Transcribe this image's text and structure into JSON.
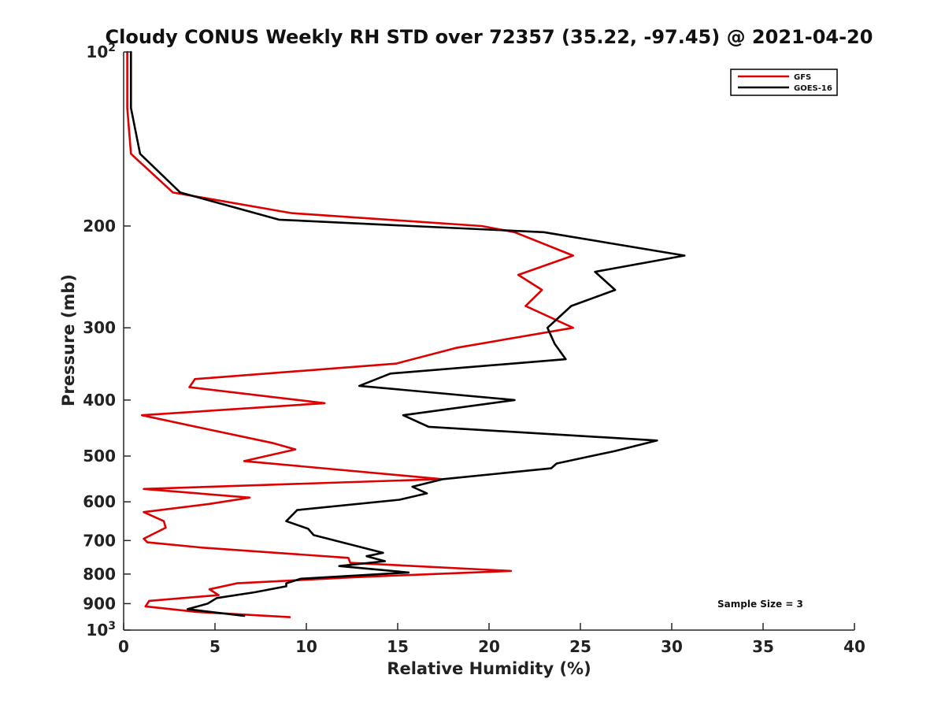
{
  "chart_data": {
    "type": "line",
    "title": "Cloudy CONUS Weekly RH STD over 72357 (35.22, -97.45) @ 2021-04-20",
    "xlabel": "Relative Humidity (%)",
    "ylabel": "Pressure (mb)",
    "xlim": [
      0,
      40
    ],
    "ylim": [
      100,
      1000
    ],
    "y_scale": "log",
    "y_reversed": true,
    "x_ticks": [
      0,
      5,
      10,
      15,
      20,
      25,
      30,
      35,
      40
    ],
    "y_ticks": [
      {
        "value": 100,
        "base": "10",
        "exp": "2"
      },
      {
        "value": 200,
        "label": "200"
      },
      {
        "value": 300,
        "label": "300"
      },
      {
        "value": 400,
        "label": "400"
      },
      {
        "value": 500,
        "label": "500"
      },
      {
        "value": 600,
        "label": "600"
      },
      {
        "value": 700,
        "label": "700"
      },
      {
        "value": 800,
        "label": "800"
      },
      {
        "value": 900,
        "label": "900"
      },
      {
        "value": 1000,
        "base": "10",
        "exp": "3"
      }
    ],
    "grid": false,
    "legend_position": "top-right",
    "annotation": "Sample Size = 3",
    "series": [
      {
        "name": "GFS",
        "color": "#dd0000",
        "points": [
          [
            0.2,
            100
          ],
          [
            0.2,
            125
          ],
          [
            0.4,
            150
          ],
          [
            2.7,
            175
          ],
          [
            9.2,
            190
          ],
          [
            19.6,
            200
          ],
          [
            21.4,
            205
          ],
          [
            24.6,
            225
          ],
          [
            21.6,
            243
          ],
          [
            22.9,
            258
          ],
          [
            22.0,
            275
          ],
          [
            24.6,
            300
          ],
          [
            18.2,
            325
          ],
          [
            14.9,
            346
          ],
          [
            3.9,
            368
          ],
          [
            3.6,
            380
          ],
          [
            11.0,
            405
          ],
          [
            1.0,
            425
          ],
          [
            4.7,
            450
          ],
          [
            8.2,
            475
          ],
          [
            9.4,
            487
          ],
          [
            6.6,
            510
          ],
          [
            17.4,
            548
          ],
          [
            1.1,
            570
          ],
          [
            6.9,
            590
          ],
          [
            4.7,
            605
          ],
          [
            1.1,
            625
          ],
          [
            2.2,
            648
          ],
          [
            2.3,
            665
          ],
          [
            1.1,
            695
          ],
          [
            1.3,
            705
          ],
          [
            4.3,
            720
          ],
          [
            12.3,
            750
          ],
          [
            12.4,
            765
          ],
          [
            21.2,
            790
          ],
          [
            12.7,
            810
          ],
          [
            6.2,
            830
          ],
          [
            4.7,
            850
          ],
          [
            5.2,
            870
          ],
          [
            1.4,
            890
          ],
          [
            1.2,
            910
          ],
          [
            4.0,
            930
          ],
          [
            9.1,
            950
          ]
        ]
      },
      {
        "name": "GOES-16",
        "color": "#000000",
        "points": [
          [
            0.4,
            100
          ],
          [
            0.4,
            125
          ],
          [
            0.9,
            150
          ],
          [
            3.1,
            175
          ],
          [
            8.5,
            195
          ],
          [
            15.8,
            200
          ],
          [
            23.0,
            205
          ],
          [
            30.7,
            225
          ],
          [
            25.8,
            240
          ],
          [
            26.9,
            258
          ],
          [
            24.5,
            275
          ],
          [
            23.2,
            300
          ],
          [
            23.6,
            320
          ],
          [
            24.2,
            340
          ],
          [
            14.6,
            360
          ],
          [
            12.9,
            378
          ],
          [
            21.4,
            400
          ],
          [
            15.3,
            425
          ],
          [
            16.7,
            445
          ],
          [
            29.2,
            470
          ],
          [
            26.9,
            490
          ],
          [
            23.7,
            515
          ],
          [
            23.4,
            525
          ],
          [
            17.5,
            548
          ],
          [
            15.8,
            565
          ],
          [
            16.6,
            580
          ],
          [
            15.1,
            595
          ],
          [
            9.5,
            620
          ],
          [
            8.9,
            648
          ],
          [
            10.1,
            668
          ],
          [
            10.4,
            685
          ],
          [
            14.2,
            735
          ],
          [
            13.3,
            745
          ],
          [
            14.3,
            760
          ],
          [
            11.8,
            775
          ],
          [
            15.6,
            795
          ],
          [
            9.7,
            815
          ],
          [
            8.9,
            830
          ],
          [
            8.9,
            840
          ],
          [
            7.2,
            860
          ],
          [
            5.1,
            880
          ],
          [
            4.6,
            900
          ],
          [
            3.5,
            920
          ],
          [
            6.6,
            945
          ]
        ]
      }
    ]
  }
}
